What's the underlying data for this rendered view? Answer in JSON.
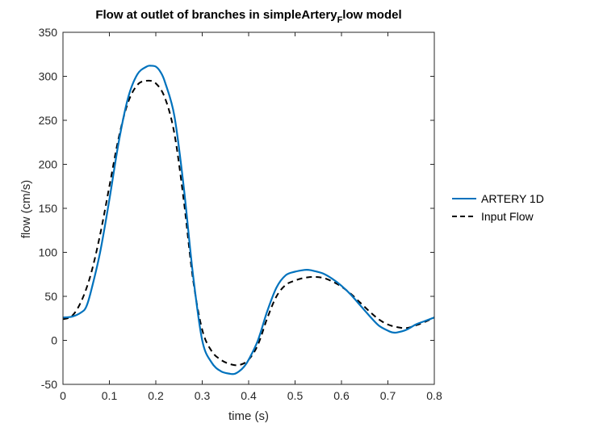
{
  "chart_data": {
    "type": "line",
    "title_main": "Flow at outlet of branches in simpleArtery",
    "title_sub": "F",
    "title_tail": "low model",
    "xlabel": "time (s)",
    "ylabel": "flow (cm/s)",
    "xlim": [
      0,
      0.8
    ],
    "ylim": [
      -50,
      350
    ],
    "xticks": [
      0,
      0.1,
      0.2,
      0.3,
      0.4,
      0.5,
      0.6,
      0.7,
      0.8
    ],
    "xtick_labels": [
      "0",
      "0.1",
      "0.2",
      "0.3",
      "0.4",
      "0.5",
      "0.6",
      "0.7",
      "0.8"
    ],
    "yticks": [
      -50,
      0,
      50,
      100,
      150,
      200,
      250,
      300,
      350
    ],
    "ytick_labels": [
      "-50",
      "0",
      "50",
      "100",
      "150",
      "200",
      "250",
      "300",
      "350"
    ],
    "grid": false,
    "legend_position": "outside-right",
    "series": [
      {
        "name": "ARTERY 1D",
        "color": "#0072BD",
        "style": "solid",
        "x": [
          0,
          0.02,
          0.04,
          0.05,
          0.06,
          0.08,
          0.1,
          0.12,
          0.14,
          0.16,
          0.18,
          0.19,
          0.2,
          0.21,
          0.22,
          0.24,
          0.26,
          0.28,
          0.3,
          0.32,
          0.34,
          0.36,
          0.37,
          0.38,
          0.39,
          0.4,
          0.42,
          0.44,
          0.46,
          0.48,
          0.5,
          0.52,
          0.53,
          0.54,
          0.56,
          0.58,
          0.6,
          0.62,
          0.64,
          0.66,
          0.68,
          0.7,
          0.71,
          0.72,
          0.74,
          0.76,
          0.78,
          0.8
        ],
        "y": [
          26,
          27,
          32,
          38,
          55,
          100,
          160,
          225,
          275,
          302,
          311,
          312,
          311,
          305,
          293,
          255,
          175,
          75,
          0,
          -25,
          -35,
          -38,
          -38,
          -35,
          -30,
          -22,
          0,
          33,
          60,
          74,
          78,
          80,
          80,
          79,
          76,
          70,
          62,
          52,
          40,
          28,
          17,
          11,
          9,
          9,
          12,
          18,
          22,
          26
        ]
      },
      {
        "name": "Input Flow",
        "color": "#000000",
        "style": "dashed",
        "x": [
          0,
          0.02,
          0.04,
          0.06,
          0.08,
          0.1,
          0.12,
          0.14,
          0.16,
          0.18,
          0.2,
          0.22,
          0.24,
          0.26,
          0.28,
          0.3,
          0.32,
          0.34,
          0.36,
          0.38,
          0.4,
          0.42,
          0.44,
          0.46,
          0.48,
          0.5,
          0.52,
          0.54,
          0.56,
          0.58,
          0.6,
          0.62,
          0.64,
          0.66,
          0.68,
          0.7,
          0.72,
          0.74,
          0.76,
          0.78,
          0.8
        ],
        "y": [
          24,
          28,
          45,
          75,
          120,
          175,
          230,
          270,
          290,
          295,
          292,
          275,
          235,
          160,
          70,
          12,
          -12,
          -22,
          -27,
          -28,
          -22,
          -5,
          25,
          50,
          63,
          68,
          71,
          72,
          71,
          67,
          61,
          53,
          43,
          33,
          24,
          18,
          15,
          14,
          17,
          21,
          26
        ]
      }
    ]
  }
}
